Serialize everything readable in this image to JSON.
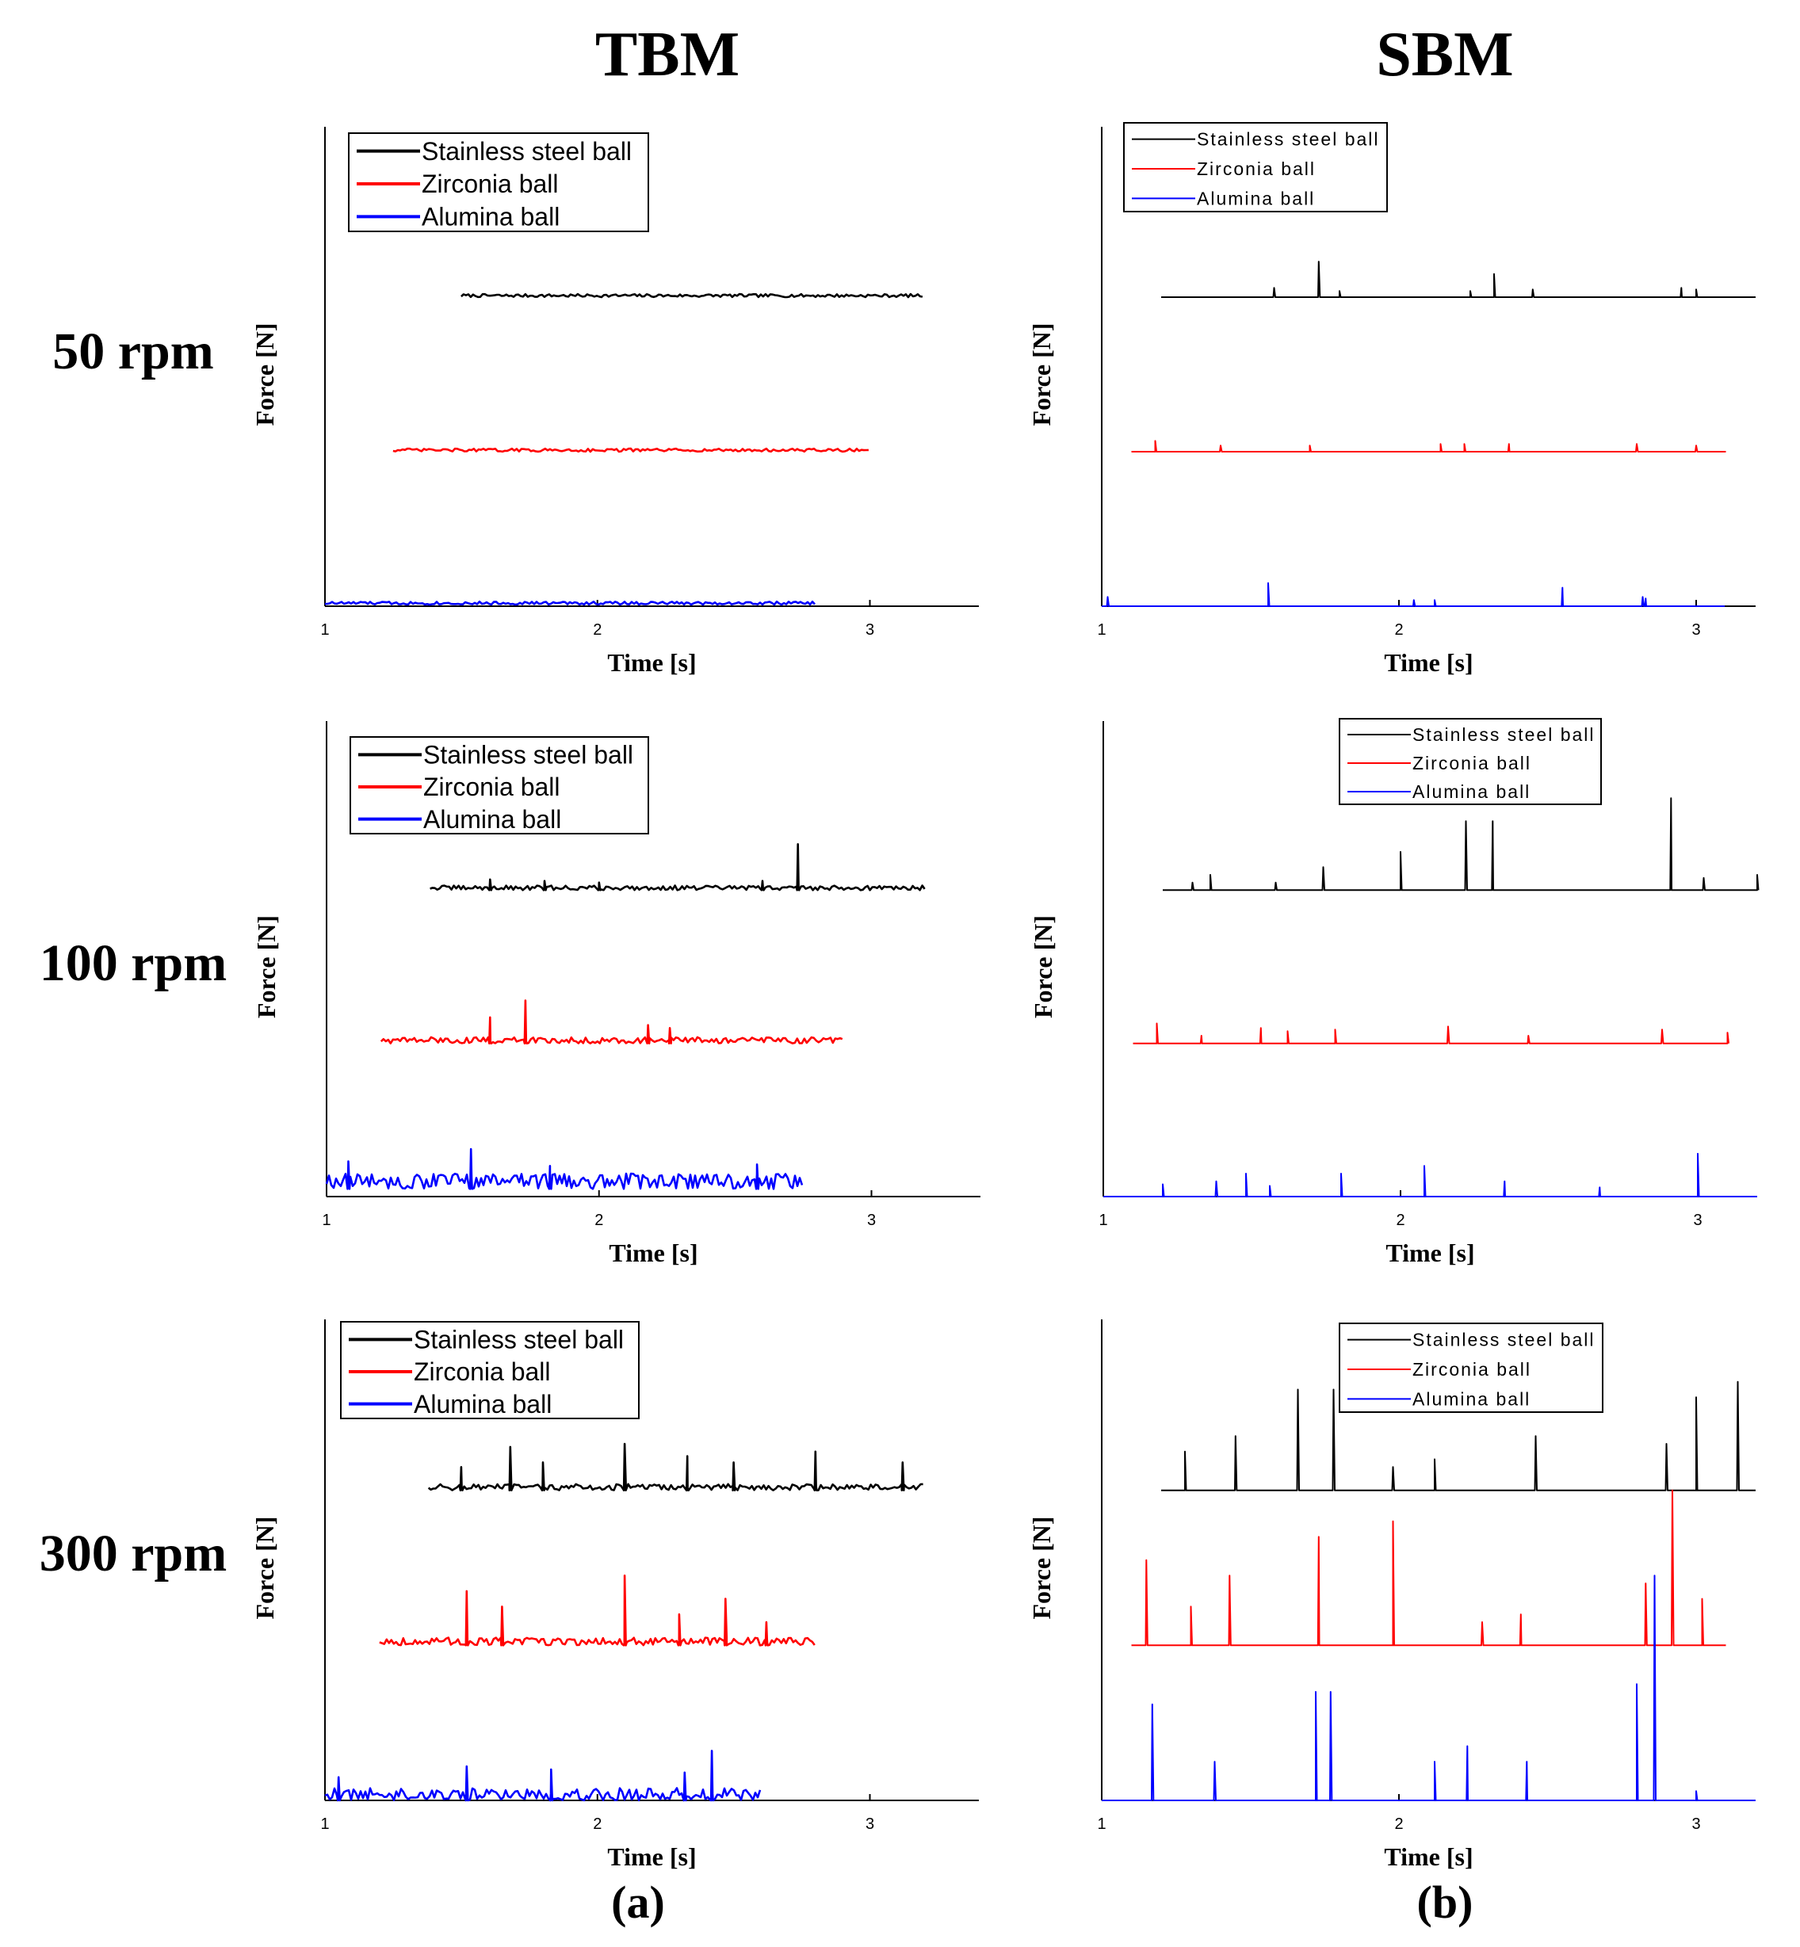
{
  "headings": {
    "left_column": "TBM",
    "right_column": "SBM",
    "left_caption": "(a)",
    "right_caption": "(b)"
  },
  "row_labels": [
    "50 rpm",
    "100 rpm",
    "300 rpm"
  ],
  "colors": {
    "Stainless steel ball": "#000000",
    "Zirconia ball": "#ff0000",
    "Alumina ball": "#0000ff"
  },
  "chart_data": [
    {
      "id": "tbm-50",
      "type": "line",
      "column": "TBM",
      "speed": "50 rpm",
      "xlabel": "Time [s]",
      "ylabel": "Force [N]",
      "xlim": [
        1,
        3.4
      ],
      "xticks": [
        1,
        2,
        3
      ],
      "ylim": [
        0,
        3
      ],
      "legend": "top-left",
      "series": [
        {
          "name": "Stainless steel ball",
          "x_start": 1.5,
          "x_end": 3.2,
          "baseline": 2.0,
          "noise": 0.02,
          "spikes": []
        },
        {
          "name": "Zirconia ball",
          "x_start": 1.25,
          "x_end": 3.0,
          "baseline": 1.0,
          "noise": 0.02,
          "spikes": []
        },
        {
          "name": "Alumina ball",
          "x_start": 1.0,
          "x_end": 2.8,
          "baseline": 0.01,
          "noise": 0.02,
          "spikes": []
        }
      ]
    },
    {
      "id": "sbm-50",
      "type": "line",
      "column": "SBM",
      "speed": "50 rpm",
      "xlabel": "Time [s]",
      "ylabel": "Force [N]",
      "xlim": [
        1,
        3.2
      ],
      "xticks": [
        1,
        2,
        3
      ],
      "ylim": [
        0,
        3
      ],
      "legend": "top-left",
      "series": [
        {
          "name": "Stainless steel ball",
          "x_start": 1.2,
          "x_end": 3.2,
          "baseline": 2.0,
          "noise": 0.0,
          "spikes": [
            [
              1.58,
              0.06
            ],
            [
              1.73,
              0.23
            ],
            [
              1.8,
              0.04
            ],
            [
              2.24,
              0.04
            ],
            [
              2.32,
              0.15
            ],
            [
              2.45,
              0.05
            ],
            [
              2.95,
              0.06
            ],
            [
              3.0,
              0.05
            ]
          ]
        },
        {
          "name": "Zirconia ball",
          "x_start": 1.1,
          "x_end": 3.1,
          "baseline": 1.0,
          "noise": 0.0,
          "spikes": [
            [
              1.18,
              0.07
            ],
            [
              1.4,
              0.04
            ],
            [
              1.7,
              0.04
            ],
            [
              2.14,
              0.05
            ],
            [
              2.22,
              0.05
            ],
            [
              2.37,
              0.05
            ],
            [
              2.8,
              0.05
            ],
            [
              3.0,
              0.04
            ]
          ]
        },
        {
          "name": "Alumina ball",
          "x_start": 1.0,
          "x_end": 3.1,
          "baseline": 0.0,
          "noise": 0.0,
          "spikes": [
            [
              1.02,
              0.06
            ],
            [
              1.56,
              0.15
            ],
            [
              2.05,
              0.04
            ],
            [
              2.12,
              0.04
            ],
            [
              2.55,
              0.12
            ],
            [
              2.82,
              0.06
            ],
            [
              2.83,
              0.05
            ]
          ]
        }
      ]
    },
    {
      "id": "tbm-100",
      "type": "line",
      "column": "TBM",
      "speed": "100 rpm",
      "xlabel": "Time [s]",
      "ylabel": "Force [N]",
      "xlim": [
        1,
        3.4
      ],
      "xticks": [
        1,
        2,
        3
      ],
      "ylim": [
        0,
        3
      ],
      "legend": "top-left",
      "series": [
        {
          "name": "Stainless steel ball",
          "x_start": 1.38,
          "x_end": 3.2,
          "baseline": 2.0,
          "noise": 0.03,
          "spikes": [
            [
              1.6,
              0.07
            ],
            [
              1.8,
              0.06
            ],
            [
              2.0,
              0.05
            ],
            [
              2.6,
              0.06
            ],
            [
              2.73,
              0.3
            ]
          ]
        },
        {
          "name": "Zirconia ball",
          "x_start": 1.2,
          "x_end": 2.9,
          "baseline": 1.0,
          "noise": 0.04,
          "spikes": [
            [
              1.6,
              0.17
            ],
            [
              1.73,
              0.28
            ],
            [
              2.18,
              0.12
            ],
            [
              2.26,
              0.1
            ]
          ]
        },
        {
          "name": "Alumina ball",
          "x_start": 1.0,
          "x_end": 2.75,
          "baseline": 0.05,
          "noise": 0.1,
          "spikes": [
            [
              1.08,
              0.18
            ],
            [
              1.53,
              0.26
            ],
            [
              1.82,
              0.15
            ],
            [
              2.58,
              0.16
            ]
          ]
        }
      ]
    },
    {
      "id": "sbm-100",
      "type": "line",
      "column": "SBM",
      "speed": "100 rpm",
      "xlabel": "Time [s]",
      "ylabel": "Force [N]",
      "xlim": [
        1,
        3.2
      ],
      "xticks": [
        1,
        2,
        3
      ],
      "ylim": [
        0,
        3
      ],
      "legend": "top-right",
      "series": [
        {
          "name": "Stainless steel ball",
          "x_start": 1.2,
          "x_end": 3.2,
          "baseline": 2.0,
          "noise": 0.0,
          "spikes": [
            [
              1.3,
              0.05
            ],
            [
              1.36,
              0.1
            ],
            [
              1.58,
              0.05
            ],
            [
              1.74,
              0.15
            ],
            [
              2.0,
              0.25
            ],
            [
              2.22,
              0.45
            ],
            [
              2.31,
              0.45
            ],
            [
              2.91,
              0.6
            ],
            [
              3.02,
              0.08
            ],
            [
              3.2,
              0.1
            ]
          ]
        },
        {
          "name": "Zirconia ball",
          "x_start": 1.1,
          "x_end": 3.1,
          "baseline": 1.0,
          "noise": 0.0,
          "spikes": [
            [
              1.18,
              0.13
            ],
            [
              1.33,
              0.05
            ],
            [
              1.53,
              0.1
            ],
            [
              1.62,
              0.08
            ],
            [
              1.78,
              0.09
            ],
            [
              2.16,
              0.11
            ],
            [
              2.43,
              0.05
            ],
            [
              2.88,
              0.09
            ],
            [
              3.1,
              0.07
            ]
          ]
        },
        {
          "name": "Alumina ball",
          "x_start": 1.0,
          "x_end": 3.2,
          "baseline": 0.0,
          "noise": 0.0,
          "spikes": [
            [
              1.2,
              0.08
            ],
            [
              1.38,
              0.1
            ],
            [
              1.48,
              0.15
            ],
            [
              1.56,
              0.07
            ],
            [
              1.8,
              0.15
            ],
            [
              2.08,
              0.2
            ],
            [
              2.35,
              0.1
            ],
            [
              2.67,
              0.06
            ],
            [
              3.0,
              0.28
            ]
          ]
        }
      ]
    },
    {
      "id": "tbm-300",
      "type": "line",
      "column": "TBM",
      "speed": "300 rpm",
      "xlabel": "Time [s]",
      "ylabel": "Force [N]",
      "xlim": [
        1,
        3.4
      ],
      "xticks": [
        1,
        2,
        3
      ],
      "ylim": [
        0,
        3
      ],
      "legend": "top-left",
      "series": [
        {
          "name": "Stainless steel ball",
          "x_start": 1.38,
          "x_end": 3.2,
          "baseline": 2.0,
          "noise": 0.04,
          "spikes": [
            [
              1.5,
              0.15
            ],
            [
              1.68,
              0.28
            ],
            [
              1.8,
              0.18
            ],
            [
              2.1,
              0.3
            ],
            [
              2.33,
              0.22
            ],
            [
              2.5,
              0.18
            ],
            [
              2.8,
              0.25
            ],
            [
              3.12,
              0.18
            ]
          ]
        },
        {
          "name": "Zirconia ball",
          "x_start": 1.2,
          "x_end": 2.8,
          "baseline": 1.0,
          "noise": 0.05,
          "spikes": [
            [
              1.52,
              0.35
            ],
            [
              1.65,
              0.25
            ],
            [
              2.1,
              0.45
            ],
            [
              2.3,
              0.2
            ],
            [
              2.47,
              0.3
            ],
            [
              2.62,
              0.15
            ]
          ]
        },
        {
          "name": "Alumina ball",
          "x_start": 1.0,
          "x_end": 2.6,
          "baseline": 0.0,
          "noise": 0.08,
          "spikes": [
            [
              1.05,
              0.15
            ],
            [
              1.52,
              0.22
            ],
            [
              1.83,
              0.2
            ],
            [
              2.32,
              0.18
            ],
            [
              2.42,
              0.32
            ]
          ]
        }
      ]
    },
    {
      "id": "sbm-300",
      "type": "line",
      "column": "SBM",
      "speed": "300 rpm",
      "xlabel": "Time [s]",
      "ylabel": "Force [N]",
      "xlim": [
        1,
        3.2
      ],
      "xticks": [
        1,
        2,
        3
      ],
      "ylim": [
        0,
        3
      ],
      "legend": "top-right",
      "series": [
        {
          "name": "Stainless steel ball",
          "x_start": 1.2,
          "x_end": 3.2,
          "baseline": 2.0,
          "noise": 0.0,
          "spikes": [
            [
              1.28,
              0.25
            ],
            [
              1.45,
              0.35
            ],
            [
              1.66,
              0.65
            ],
            [
              1.78,
              0.65
            ],
            [
              1.98,
              0.15
            ],
            [
              2.12,
              0.2
            ],
            [
              2.46,
              0.35
            ],
            [
              2.9,
              0.3
            ],
            [
              3.0,
              0.6
            ],
            [
              3.14,
              0.7
            ]
          ]
        },
        {
          "name": "Zirconia ball",
          "x_start": 1.1,
          "x_end": 3.1,
          "baseline": 1.0,
          "noise": 0.0,
          "spikes": [
            [
              1.15,
              0.55
            ],
            [
              1.3,
              0.25
            ],
            [
              1.43,
              0.45
            ],
            [
              1.73,
              0.7
            ],
            [
              1.98,
              0.8
            ],
            [
              2.28,
              0.15
            ],
            [
              2.41,
              0.2
            ],
            [
              2.83,
              0.4
            ],
            [
              2.92,
              1.0
            ],
            [
              3.02,
              0.3
            ]
          ]
        },
        {
          "name": "Alumina ball",
          "x_start": 1.0,
          "x_end": 3.2,
          "baseline": 0.0,
          "noise": 0.0,
          "spikes": [
            [
              1.17,
              0.62
            ],
            [
              1.38,
              0.25
            ],
            [
              1.72,
              0.7
            ],
            [
              1.77,
              0.7
            ],
            [
              2.12,
              0.25
            ],
            [
              2.23,
              0.35
            ],
            [
              2.43,
              0.25
            ],
            [
              2.8,
              0.75
            ],
            [
              2.86,
              1.45
            ],
            [
              3.0,
              0.06
            ]
          ]
        }
      ]
    }
  ]
}
